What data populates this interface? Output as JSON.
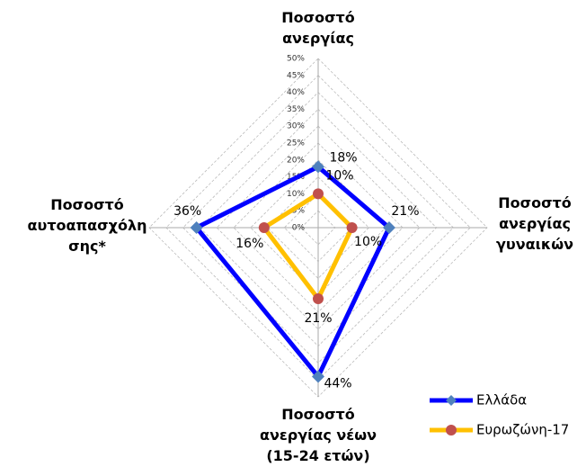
{
  "chart_data": {
    "type": "radar",
    "categories": [
      "Ποσοστό\nανεργίας",
      "Ποσοστό\nανεργίας\nγυναικών",
      "Ποσοστό\nανεργίας νέων\n(15-24 ετών)",
      "Ποσοστό\nαυτοαπασχόλη\nσης*"
    ],
    "series": [
      {
        "name": "Ελλάδα",
        "color": "#0000ff",
        "marker_color": "#4f81bd",
        "marker": "diamond",
        "values": [
          18,
          21,
          44,
          36
        ],
        "value_labels": [
          "18%",
          "21%",
          "44%",
          "36%"
        ]
      },
      {
        "name": "Ευρωζώνη-17",
        "color": "#ffc000",
        "marker_color": "#c0504d",
        "marker": "circle",
        "values": [
          10,
          10,
          21,
          16
        ],
        "value_labels": [
          "10%",
          "10%",
          "21%",
          "16%"
        ]
      }
    ],
    "ylim": [
      0,
      50
    ],
    "yticks": [
      {
        "value": 0,
        "label": "0%"
      },
      {
        "value": 5,
        "label": "5%"
      },
      {
        "value": 10,
        "label": "10%"
      },
      {
        "value": 15,
        "label": "15%"
      },
      {
        "value": 20,
        "label": "20%"
      },
      {
        "value": 25,
        "label": "25%"
      },
      {
        "value": 30,
        "label": "30%"
      },
      {
        "value": 35,
        "label": "35%"
      },
      {
        "value": 40,
        "label": "40%"
      },
      {
        "value": 45,
        "label": "45%"
      },
      {
        "value": 50,
        "label": "50%"
      }
    ],
    "grid": true,
    "legend": "bottom-right"
  }
}
